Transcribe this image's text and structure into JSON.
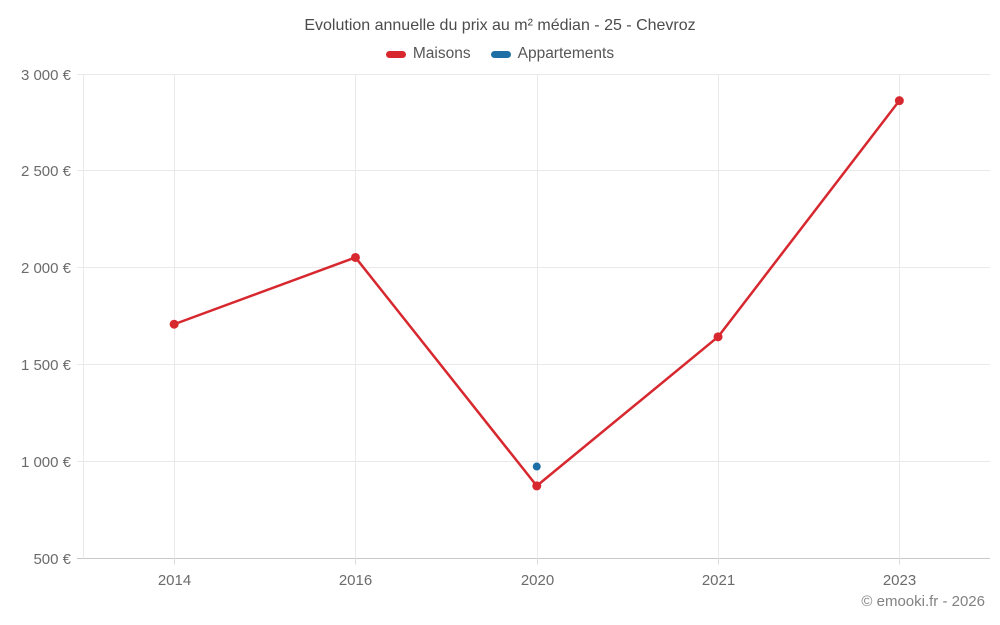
{
  "watermark": "© emooki.fr - 2026",
  "chart_data": {
    "type": "line",
    "title": "Evolution annuelle du prix au m² médian - 25 - Chevroz",
    "categories": [
      "2014",
      "2016",
      "2020",
      "2021",
      "2023"
    ],
    "series": [
      {
        "name": "Maisons",
        "color": "#d7282f",
        "marker_radius": 4.5,
        "line_width": 2.5,
        "values": [
          1710,
          2055,
          875,
          1645,
          2865
        ]
      },
      {
        "name": "Appartements",
        "color": "#1d6fa5",
        "marker_radius": 4,
        "line_width": 2.5,
        "values": [
          null,
          null,
          975,
          null,
          null
        ]
      }
    ],
    "xlabel": "",
    "ylabel": "",
    "ylim": [
      500,
      3000
    ],
    "yticks": [
      {
        "value": 3000,
        "label": "3 000 €"
      },
      {
        "value": 2500,
        "label": "2 500 €"
      },
      {
        "value": 2000,
        "label": "2 000 €"
      },
      {
        "value": 1500,
        "label": "1 500 €"
      },
      {
        "value": 1000,
        "label": "1 000 €"
      },
      {
        "value": 500,
        "label": "500 €"
      }
    ],
    "grid": true,
    "legend_position": "top"
  }
}
